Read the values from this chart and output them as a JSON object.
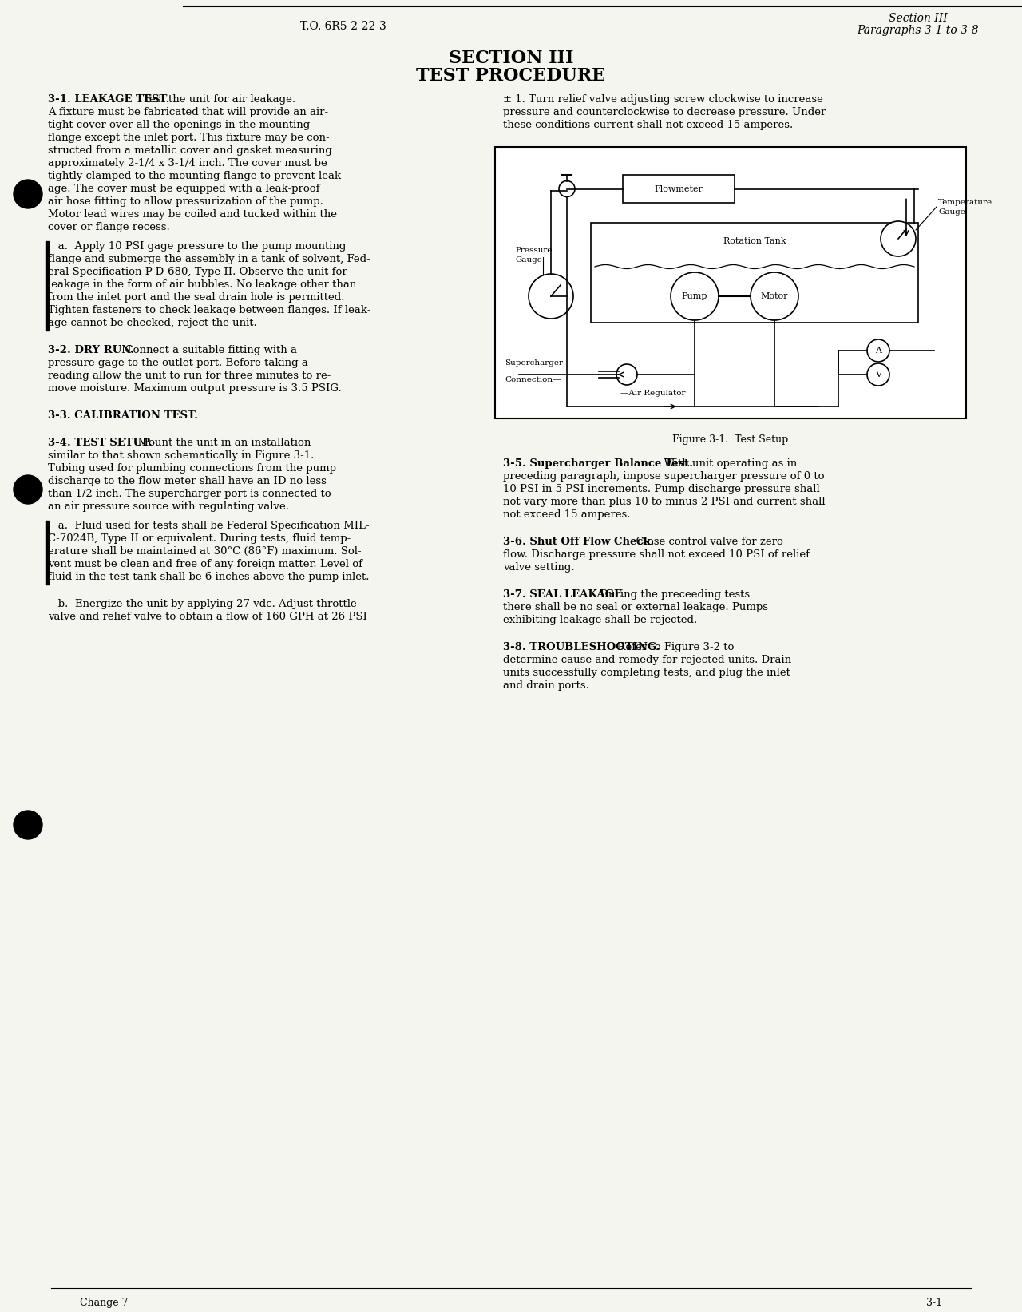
{
  "page_bg": "#f5f5f0",
  "title_left": "T.O. 6R5-2-22-3",
  "title_right_line1": "Section III",
  "title_right_line2": "Paragraphs 3-1 to 3-8",
  "section_title_line1": "SECTION III",
  "section_title_line2": "TEST PROCEDURE",
  "figure_caption": "Figure 3-1.  Test Setup",
  "footer_left": "Change 7",
  "footer_right": "3-1",
  "left_col_text": [
    {
      "bold": true,
      "text": "3-1. LEAKAGE TEST.",
      "rest": " Test the unit for air leakage. A fixture must be fabricated that will provide an air-tight cover over all the openings in the mounting flange except the inlet port. This fixture may be con-structed from a metallic cover and gasket measuring approximately 2-1/4 x 3-1/4 inch. The cover must be tightly clamped to the mounting flange to prevent leak-age. The cover must be equipped with a leak-proof air hose fitting to allow pressurization of the pump. Motor lead wires may be coiled and tucked within the cover or flange recess."
    },
    {
      "indent": true,
      "bold_start": "a.",
      "rest": " Apply 10 PSI gage pressure to the pump mounting flange and submerge the assembly in a tank of solvent, Fed-eral Specification P-D-680, Type II. Observe the unit for leakage in the form of air bubbles. No leakage other than from the inlet port and the seal drain hole is permitted. Tighten fasteners to check leakage between flanges. If leak-age cannot be checked, reject the unit."
    },
    {
      "bold": true,
      "text": "3-2. DRY RUN.",
      "rest": " Connect a suitable fitting with a pressure gage to the outlet port. Before taking a reading allow the unit to run for three minutes to re-move moisture. Maximum output pressure is 3.5 PSIG."
    },
    {
      "bold": true,
      "text": "3-3. CALIBRATION TEST."
    },
    {
      "bold": true,
      "text": "3-4. TEST SETUP.",
      "rest": " Mount the unit in an installation similar to that shown schematically in Figure 3-1. Tubing used for plumbing connections from the pump discharge to the flow meter shall have an ID no less than 1/2 inch. The supercharger port is connected to an air pressure source with regulating valve."
    },
    {
      "indent": true,
      "bold_start": "a.",
      "rest": " Fluid used for tests shall be Federal Specification MIL-C-7024B, Type II or equivalent. During tests, fluid temp-erature shall be maintained at 30°C (86°F) maximum. Sol-vent must be clean and free of any foreign matter. Level of fluid in the test tank shall be 6 inches above the pump inlet."
    },
    {
      "indent": true,
      "bold_start": "b.",
      "rest": " Energize the unit by applying 27 vdc. Adjust throttle valve and relief valve to obtain a flow of 160 GPH at 26 PSI"
    }
  ],
  "right_col_text": [
    {
      "rest": "± 1. Turn relief valve adjusting screw clockwise to increase pressure and counterclockwise to decrease pressure. Under these conditions current shall not exceed 15 amperes."
    },
    {
      "bold": true,
      "text": "3-5. Supercharger Balance Test.",
      "rest": " With unit operating as in preceding paragraph, impose supercharger pressure of 0 to 10 PSI in 5 PSI increments. Pump discharge pressure shall not vary more than plus 10 to minus 2 PSI and current shall not exceed 15 amperes."
    },
    {
      "bold": true,
      "text": "3-6. Shut Off Flow Check.",
      "rest": " Close control valve for zero flow. Discharge pressure shall not exceed 10 PSI of relief valve setting."
    },
    {
      "bold": true,
      "text": "3-7. SEAL LEAKAGE.",
      "rest": " During the preceeding tests there shall be no seal or external leakage. Pumps exhibiting leakage shall be rejected."
    },
    {
      "bold": true,
      "text": "3-8. TROUBLESHOOTING.",
      "rest": " Refer to Figure 3-2 to determine cause and remedy for rejected units. Drain units successfully completing tests, and plug the inlet and drain ports."
    }
  ]
}
